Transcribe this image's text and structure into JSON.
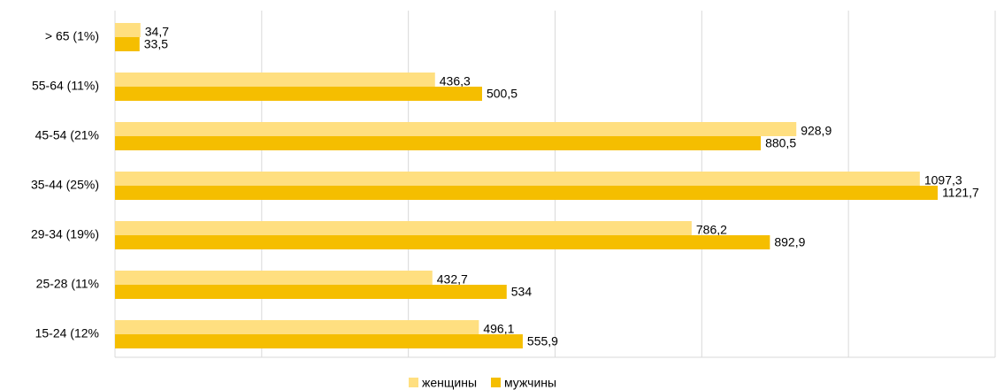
{
  "chart_data": {
    "type": "hbar",
    "categories": [
      "> 65 (1%)",
      "55-64 (11%)",
      "45-54 (21%",
      "35-44 (25%)",
      "29-34 (19%)",
      "25-28 (11%",
      "15-24 (12%"
    ],
    "series": [
      {
        "name": "женщины",
        "color": "#ffdf80",
        "values": [
          34.7,
          436.3,
          928.9,
          1097.3,
          786.2,
          432.7,
          496.1
        ],
        "value_labels": [
          "34,7",
          "436,3",
          "928,9",
          "1097,3",
          "786,2",
          "432,7",
          "496,1"
        ]
      },
      {
        "name": "мужчины",
        "color": "#f5be00",
        "values": [
          33.5,
          500.5,
          880.5,
          1121.7,
          892.9,
          534,
          555.9
        ],
        "value_labels": [
          "33,5",
          "500,5",
          "880,5",
          "1121,7",
          "892,9",
          "534",
          "555,9"
        ]
      }
    ],
    "xlim": [
      0,
      1200
    ],
    "xticks": [
      0,
      200,
      400,
      600,
      800,
      1000,
      1200
    ],
    "grid": true,
    "legend": "bottom"
  }
}
